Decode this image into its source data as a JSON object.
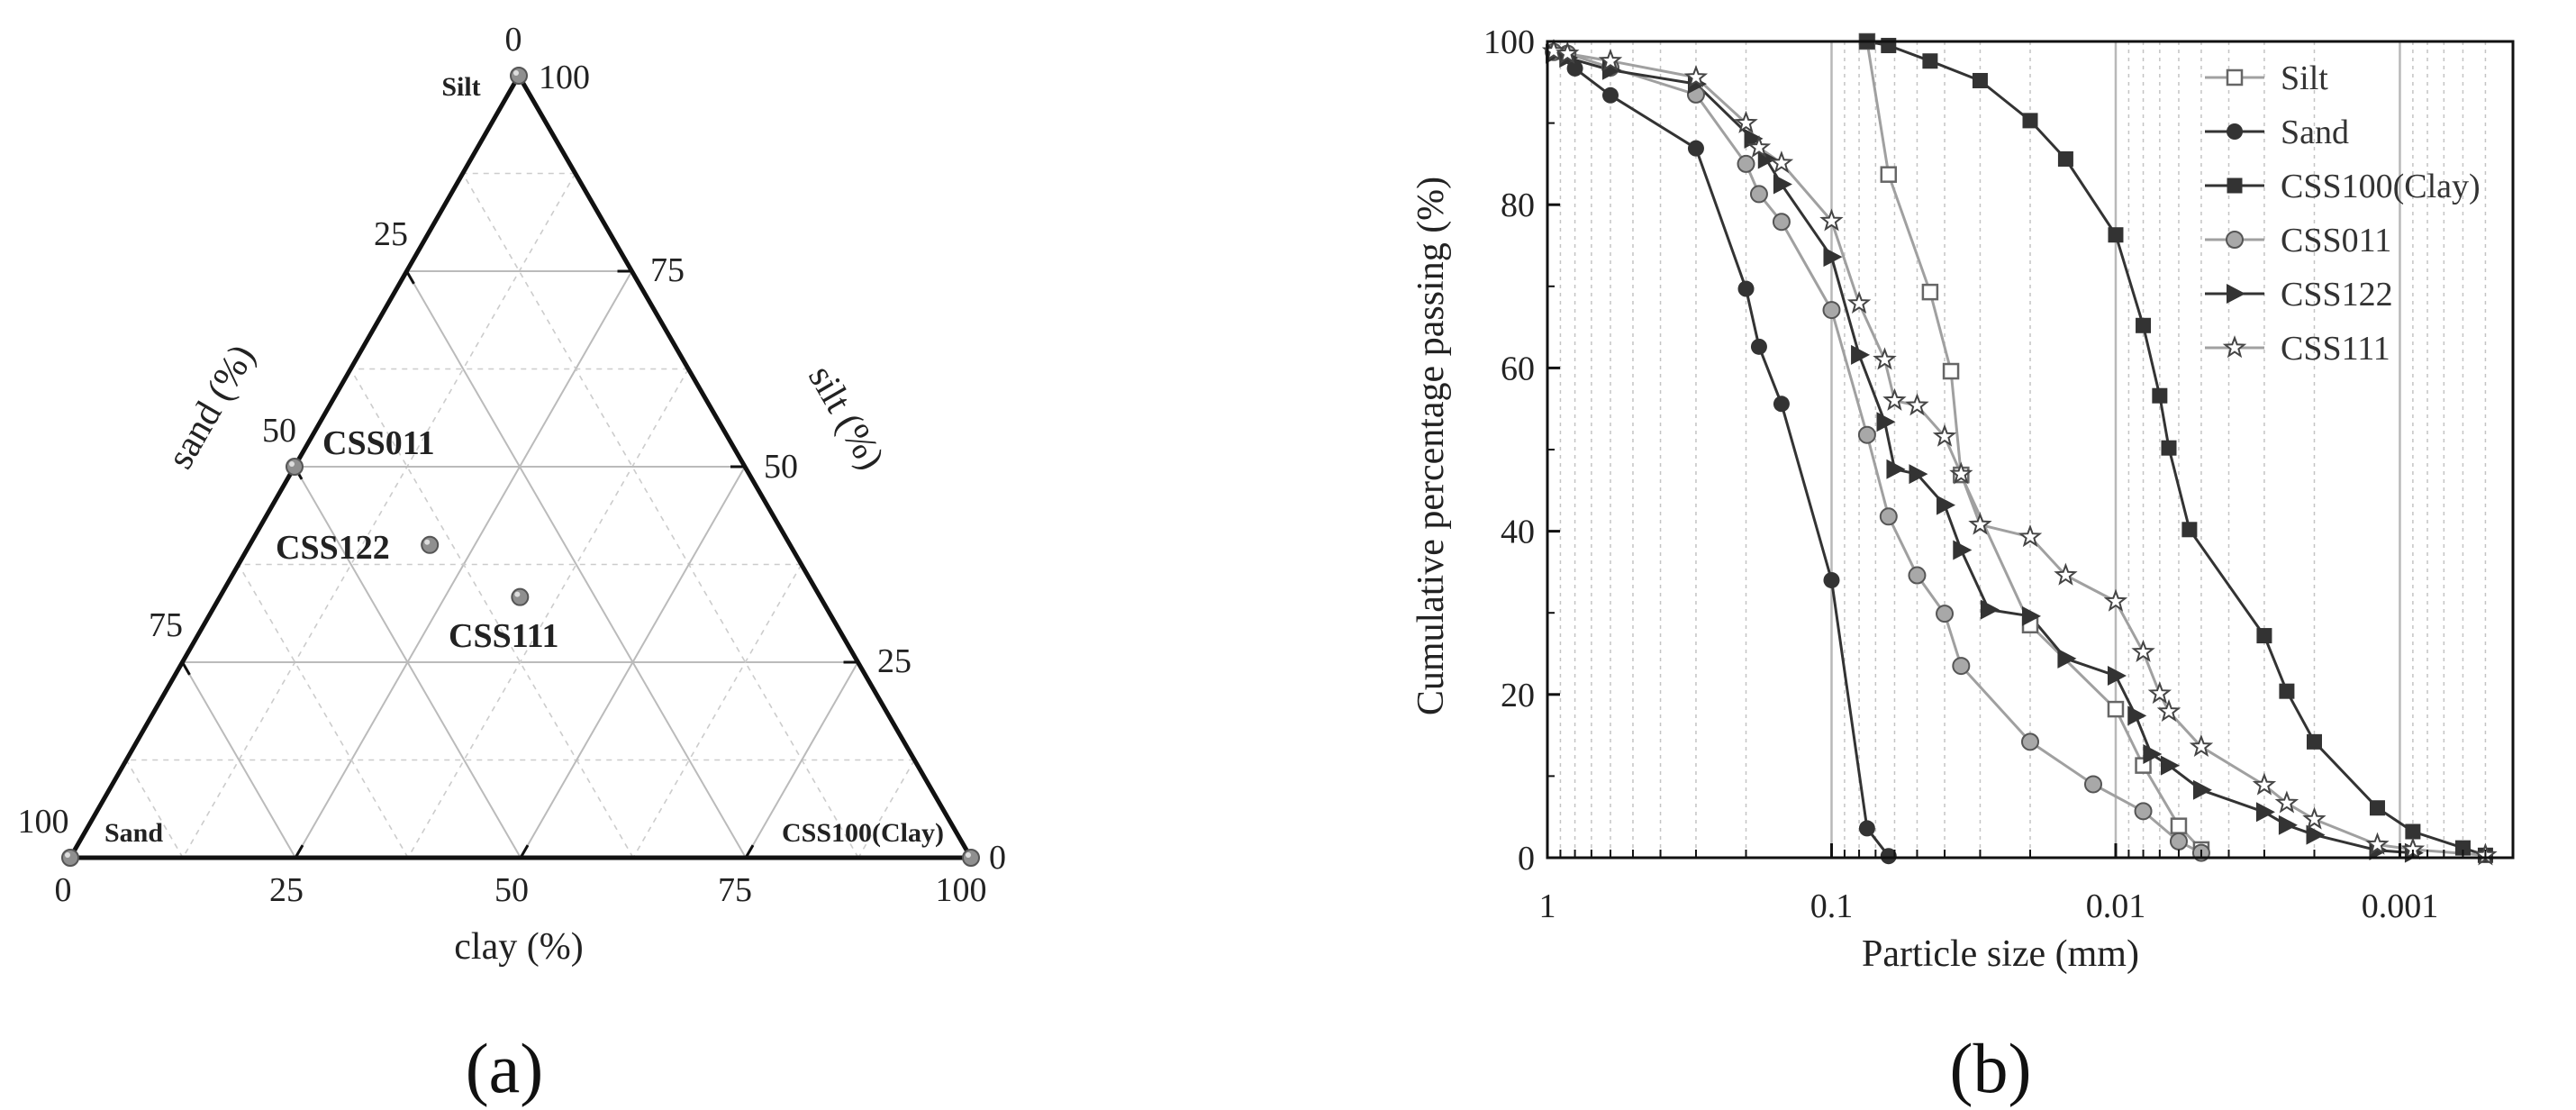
{
  "panels": {
    "a": "(a)",
    "b": "(b)"
  },
  "colors": {
    "axis": "#111111",
    "grid": "#bbbbbb",
    "gridMinor": "#cccccc",
    "dark": "#333333",
    "light": "#9a9a9a"
  },
  "chart_data": [
    {
      "type": "ternary",
      "axes": {
        "clay": "clay (%)",
        "silt": "silt (%)",
        "sand": "sand (%)"
      },
      "vertex_labels": {
        "silt": "Silt",
        "sand": "Sand",
        "clay": "CSS100(Clay)"
      },
      "ticks": {
        "clay": [
          "0",
          "25",
          "50",
          "75",
          "100"
        ],
        "silt": [
          "0",
          "25",
          "50",
          "75",
          "100"
        ],
        "sand": [
          "25",
          "50",
          "75",
          "100"
        ]
      },
      "grid_step": 12.5,
      "points": [
        {
          "name": "Silt",
          "label": "",
          "clay": 0,
          "silt": 100,
          "sand": 0
        },
        {
          "name": "Sand",
          "label": "",
          "clay": 0,
          "silt": 0,
          "sand": 100
        },
        {
          "name": "CSS100(Clay)",
          "label": "",
          "clay": 100,
          "silt": 0,
          "sand": 0
        },
        {
          "name": "CSS011",
          "label": "CSS011",
          "clay": 0,
          "silt": 50,
          "sand": 50
        },
        {
          "name": "CSS122",
          "label": "CSS122",
          "clay": 20,
          "silt": 40,
          "sand": 40
        },
        {
          "name": "CSS111",
          "label": "CSS111",
          "clay": 33.3,
          "silt": 33.3,
          "sand": 33.3
        }
      ]
    },
    {
      "type": "line",
      "title": "",
      "xlabel": "Particle size (mm)",
      "ylabel": "Cumulative percentage passing (%)",
      "xscale": "log",
      "xreversed": true,
      "xlim": [
        1,
        0.0004
      ],
      "ylim": [
        0,
        100
      ],
      "xticks": [
        {
          "value": 1,
          "label": "1"
        },
        {
          "value": 0.1,
          "label": "0.1"
        },
        {
          "value": 0.01,
          "label": "0.01"
        },
        {
          "value": 0.001,
          "label": "0.001"
        }
      ],
      "yticks": [
        {
          "value": 0,
          "label": "0"
        },
        {
          "value": 20,
          "label": "20"
        },
        {
          "value": 40,
          "label": "40"
        },
        {
          "value": 60,
          "label": "60"
        },
        {
          "value": 80,
          "label": "80"
        },
        {
          "value": 100,
          "label": "100"
        }
      ],
      "legend": "top-right",
      "series": [
        {
          "name": "Silt",
          "marker": "square-open",
          "tone": "light",
          "x": [
            0.075,
            0.063,
            0.045,
            0.038,
            0.035,
            0.02,
            0.01,
            0.008,
            0.006,
            0.005
          ],
          "y": [
            100,
            83.7,
            69.3,
            59.6,
            46.9,
            28.5,
            18.2,
            11.3,
            3.9,
            1.0
          ]
        },
        {
          "name": "Sand",
          "marker": "circle",
          "tone": "dark",
          "x": [
            0.95,
            0.8,
            0.6,
            0.3,
            0.2,
            0.18,
            0.15,
            0.1,
            0.075,
            0.063
          ],
          "y": [
            98.8,
            96.7,
            93.4,
            86.9,
            69.7,
            62.6,
            55.6,
            34.0,
            3.6,
            0.2
          ]
        },
        {
          "name": "CSS100(Clay)",
          "marker": "square",
          "tone": "dark",
          "x": [
            0.075,
            0.063,
            0.045,
            0.03,
            0.02,
            0.015,
            0.01,
            0.008,
            0.007,
            0.0065,
            0.0055,
            0.003,
            0.0025,
            0.002,
            0.0012,
            0.0009,
            0.0006,
            0.0005
          ],
          "y": [
            100,
            99.5,
            97.6,
            95.2,
            90.3,
            85.6,
            76.3,
            65.2,
            56.6,
            50.2,
            40.2,
            27.2,
            20.4,
            14.2,
            6.1,
            3.2,
            1.2,
            0.3
          ]
        },
        {
          "name": "CSS011",
          "marker": "circle-gray",
          "tone": "light",
          "x": [
            0.95,
            0.85,
            0.6,
            0.3,
            0.2,
            0.18,
            0.15,
            0.1,
            0.075,
            0.063,
            0.05,
            0.04,
            0.035,
            0.02,
            0.012,
            0.008,
            0.006,
            0.005
          ],
          "y": [
            98.7,
            98.5,
            96.8,
            93.5,
            85.0,
            81.3,
            77.9,
            67.1,
            51.8,
            41.8,
            34.6,
            29.9,
            23.5,
            14.2,
            9.0,
            5.7,
            2.0,
            0.6
          ]
        },
        {
          "name": "CSS122",
          "marker": "triangle-right",
          "tone": "dark",
          "x": [
            0.95,
            0.85,
            0.6,
            0.3,
            0.19,
            0.17,
            0.15,
            0.1,
            0.08,
            0.065,
            0.06,
            0.05,
            0.04,
            0.035,
            0.028,
            0.02,
            0.015,
            0.01,
            0.0085,
            0.0075,
            0.0065,
            0.005,
            0.003,
            0.0025,
            0.002,
            0.0012,
            0.0009
          ],
          "y": [
            98.5,
            98.0,
            96.5,
            94.8,
            88.1,
            85.6,
            82.5,
            73.6,
            61.6,
            53.4,
            47.6,
            47.0,
            43.2,
            37.7,
            30.4,
            29.6,
            24.4,
            22.3,
            17.4,
            12.7,
            11.3,
            8.3,
            5.6,
            4.0,
            2.8,
            0.9,
            0.6
          ]
        },
        {
          "name": "CSS111",
          "marker": "star",
          "tone": "light",
          "x": [
            0.95,
            0.85,
            0.6,
            0.3,
            0.2,
            0.18,
            0.15,
            0.1,
            0.08,
            0.065,
            0.06,
            0.05,
            0.04,
            0.035,
            0.03,
            0.02,
            0.015,
            0.01,
            0.008,
            0.007,
            0.0065,
            0.005,
            0.003,
            0.0025,
            0.002,
            0.0012,
            0.0009,
            0.0005
          ],
          "y": [
            98.8,
            98.5,
            97.6,
            95.6,
            90.0,
            87.0,
            85.1,
            78.0,
            67.9,
            61.0,
            56.0,
            55.4,
            51.6,
            47.0,
            40.8,
            39.3,
            34.6,
            31.4,
            25.2,
            20.1,
            17.9,
            13.6,
            8.9,
            6.7,
            4.7,
            1.6,
            1.0,
            0.3
          ]
        }
      ]
    }
  ]
}
